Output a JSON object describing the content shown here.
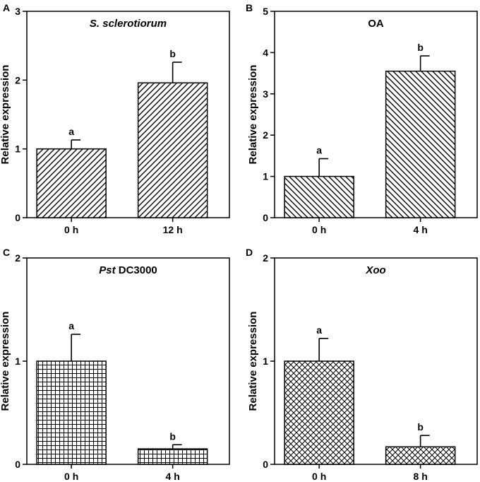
{
  "chart_data": [
    {
      "panel": "A",
      "type": "bar",
      "title": "S. sclerotiorum",
      "title_italic_part": "S. sclerotiorum",
      "title_rest": "",
      "ylabel": "Relative expression",
      "xlabel": "",
      "ylim": [
        0,
        3
      ],
      "yticks": [
        "0",
        "1",
        "2",
        "3"
      ],
      "categories": [
        "0 h",
        "12 h"
      ],
      "values": [
        1.0,
        1.96
      ],
      "errors": [
        0.13,
        0.3
      ],
      "letters": [
        "a",
        "b"
      ],
      "pattern": "diag-right"
    },
    {
      "panel": "B",
      "type": "bar",
      "title": "OA",
      "title_italic_part": "",
      "title_rest": "OA",
      "ylabel": "Relative expression",
      "xlabel": "",
      "ylim": [
        0,
        5
      ],
      "yticks": [
        "0",
        "1",
        "2",
        "3",
        "4",
        "5"
      ],
      "categories": [
        "0 h",
        "4 h"
      ],
      "values": [
        1.0,
        3.55
      ],
      "errors": [
        0.43,
        0.37
      ],
      "letters": [
        "a",
        "b"
      ],
      "pattern": "diag-left"
    },
    {
      "panel": "C",
      "type": "bar",
      "title": "Pst DC3000",
      "title_italic_part": "Pst",
      "title_rest": " DC3000",
      "ylabel": "Relative expression",
      "xlabel": "",
      "ylim": [
        0,
        2
      ],
      "yticks": [
        "0",
        "1",
        "2"
      ],
      "categories": [
        "0 h",
        "4 h"
      ],
      "values": [
        1.0,
        0.15
      ],
      "errors": [
        0.26,
        0.04
      ],
      "letters": [
        "a",
        "b"
      ],
      "pattern": "grid"
    },
    {
      "panel": "D",
      "type": "bar",
      "title": "Xoo",
      "title_italic_part": "Xoo",
      "title_rest": "",
      "ylabel": "Relative expression",
      "xlabel": "",
      "ylim": [
        0,
        2
      ],
      "yticks": [
        "0",
        "1",
        "2"
      ],
      "categories": [
        "0 h",
        "8 h"
      ],
      "values": [
        1.0,
        0.17
      ],
      "errors": [
        0.22,
        0.11
      ],
      "letters": [
        "a",
        "b"
      ],
      "pattern": "crosshatch"
    }
  ]
}
